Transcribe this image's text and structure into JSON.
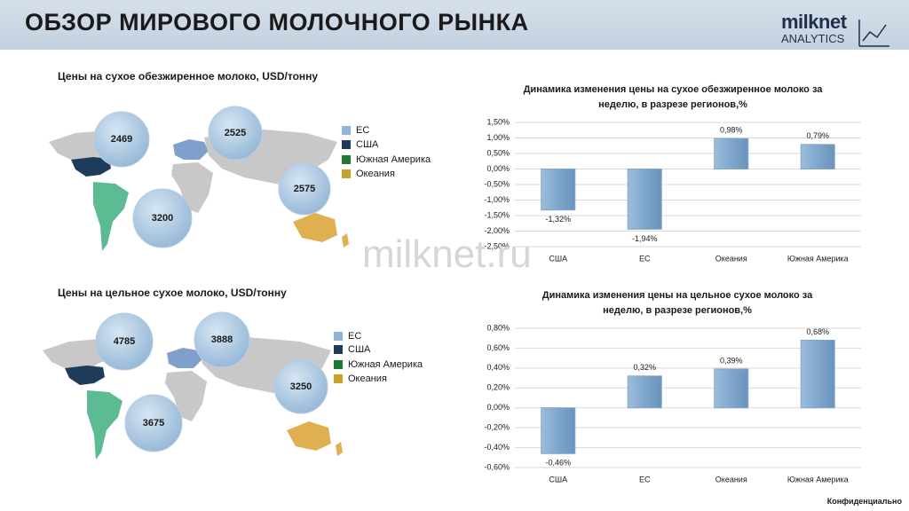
{
  "header": {
    "title": "ОБЗОР МИРОВОГО МОЛОЧНОГО РЫНКА",
    "logo_name": "milknet",
    "logo_sub": "ANALYTICS"
  },
  "watermark": "milknet.ru",
  "footer": "Конфиденциально",
  "maps": [
    {
      "title": "Цены на сухое обезжиренное молоко, USD/тонну",
      "legend": [
        {
          "name": "ЕС",
          "color": "#8fb4d6"
        },
        {
          "name": "США",
          "color": "#1f3b5c"
        },
        {
          "name": "Южная Америка",
          "color": "#1e7a2e"
        },
        {
          "name": "Океания",
          "color": "#c9a02a"
        }
      ],
      "bubbles": [
        2469,
        2525,
        2575,
        3200
      ]
    },
    {
      "title": "Цены на цельное сухое молоко, USD/тонну",
      "legend": [
        {
          "name": "ЕС",
          "color": "#8fb4d6"
        },
        {
          "name": "США",
          "color": "#1f3b5c"
        },
        {
          "name": "Южная Америка",
          "color": "#1e7a2e"
        },
        {
          "name": "Океания",
          "color": "#c9a02a"
        }
      ],
      "bubbles": [
        4785,
        3888,
        3250,
        3675
      ]
    }
  ],
  "chart_data": [
    {
      "type": "bar",
      "title": "Динамика изменения цены на сухое обезжиренное молоко за неделю, в разрезе регионов,%",
      "categories": [
        "США",
        "ЕС",
        "Океания",
        "Южная Америка"
      ],
      "values": [
        -1.32,
        -1.94,
        0.98,
        0.79
      ],
      "value_labels": [
        "-1,32%",
        "-1,94%",
        "0,98%",
        "0,79%"
      ],
      "color": "#7fa7cc",
      "grid": true,
      "ylim": [
        -2.5,
        1.5
      ],
      "yticks": [
        {
          "value": -2.5,
          "label": "-2,50%"
        },
        {
          "value": -2,
          "label": "-2,00%"
        },
        {
          "value": -1.5,
          "label": "-1,50%"
        },
        {
          "value": -1,
          "label": "-1,00%"
        },
        {
          "value": -0.5,
          "label": "-0,50%"
        },
        {
          "value": 0,
          "label": "0,00%"
        },
        {
          "value": 0.5,
          "label": "0,50%"
        },
        {
          "value": 1,
          "label": "1,00%"
        },
        {
          "value": 1.5,
          "label": "1,50%"
        }
      ]
    },
    {
      "type": "bar",
      "title": "Динамика изменения цены на цельное сухое молоко за неделю, в разрезе регионов,%",
      "categories": [
        "США",
        "ЕС",
        "Океания",
        "Южная Америка"
      ],
      "values": [
        -0.46,
        0.32,
        0.39,
        0.68
      ],
      "value_labels": [
        "-0,46%",
        "0,32%",
        "0,39%",
        "0,68%"
      ],
      "color": "#7fa7cc",
      "grid": true,
      "ylim": [
        -0.6,
        0.8
      ],
      "yticks": [
        {
          "value": -0.6,
          "label": "-0,60%"
        },
        {
          "value": -0.4,
          "label": "-0,40%"
        },
        {
          "value": -0.2,
          "label": "-0,20%"
        },
        {
          "value": 0,
          "label": "0,00%"
        },
        {
          "value": 0.2,
          "label": "0,20%"
        },
        {
          "value": 0.4,
          "label": "0,40%"
        },
        {
          "value": 0.6,
          "label": "0,60%"
        },
        {
          "value": 0.8,
          "label": "0,80%"
        }
      ]
    }
  ]
}
